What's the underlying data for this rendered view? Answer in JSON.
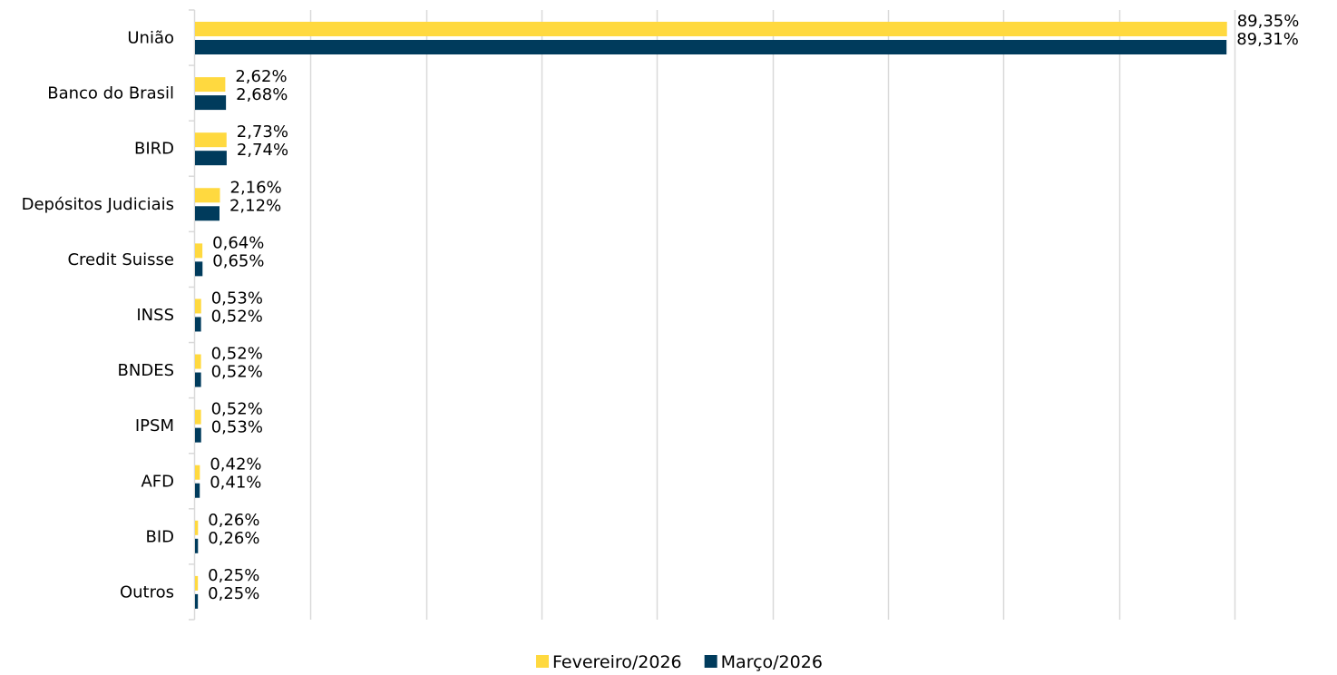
{
  "chart_data": {
    "type": "bar",
    "orientation": "horizontal",
    "title": "",
    "xlabel": "",
    "ylabel": "",
    "xlim": [
      0,
      90
    ],
    "gridlines": "vertical",
    "legend_position": "bottom",
    "categories": [
      "União",
      "Banco do Brasil",
      "BIRD",
      "Depósitos Judiciais",
      "Credit Suisse",
      "INSS",
      "BNDES",
      "IPSM",
      "AFD",
      "BID",
      "Outros"
    ],
    "series": [
      {
        "name": "Fevereiro/2026",
        "color": "#FFD93F",
        "values": [
          89.35,
          2.62,
          2.73,
          2.16,
          0.64,
          0.53,
          0.52,
          0.52,
          0.42,
          0.26,
          0.25
        ],
        "labels": [
          "89,35%",
          "2,62%",
          "2,73%",
          "2,16%",
          "0,64%",
          "0,53%",
          "0,52%",
          "0,52%",
          "0,42%",
          "0,26%",
          "0,25%"
        ]
      },
      {
        "name": "Março/2026",
        "color": "#003B5C",
        "values": [
          89.31,
          2.68,
          2.74,
          2.12,
          0.65,
          0.52,
          0.52,
          0.53,
          0.41,
          0.26,
          0.25
        ],
        "labels": [
          "89,31%",
          "2,68%",
          "2,74%",
          "2,12%",
          "0,65%",
          "0,52%",
          "0,52%",
          "0,53%",
          "0,41%",
          "0,26%",
          "0,25%"
        ]
      }
    ]
  }
}
